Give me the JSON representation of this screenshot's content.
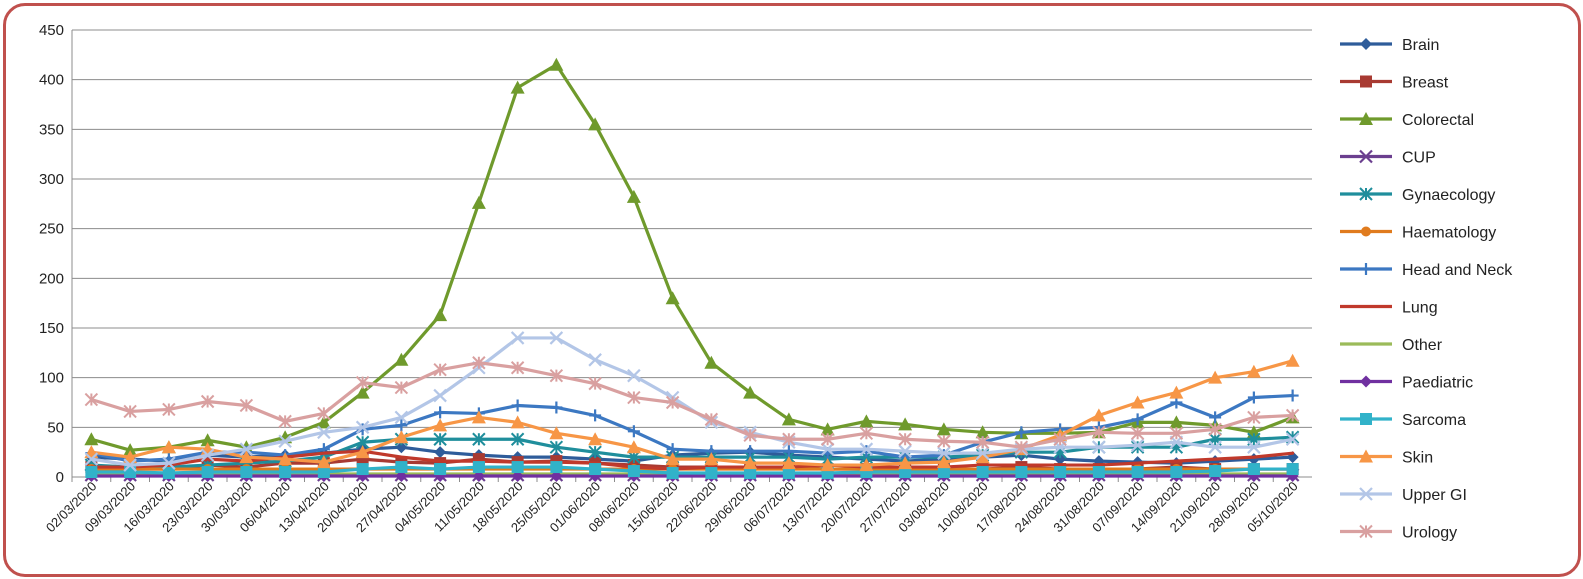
{
  "chart_data": {
    "type": "line",
    "title": "",
    "xlabel": "",
    "ylabel": "",
    "ylim": [
      0,
      450
    ],
    "yticks": [
      0,
      50,
      100,
      150,
      200,
      250,
      300,
      350,
      400,
      450
    ],
    "grid": true,
    "legend_position": "right",
    "categories": [
      "02/03/2020",
      "09/03/2020",
      "16/03/2020",
      "23/03/2020",
      "30/03/2020",
      "06/04/2020",
      "13/04/2020",
      "20/04/2020",
      "27/04/2020",
      "04/05/2020",
      "11/05/2020",
      "18/05/2020",
      "25/05/2020",
      "01/06/2020",
      "08/06/2020",
      "15/06/2020",
      "22/06/2020",
      "29/06/2020",
      "06/07/2020",
      "13/07/2020",
      "20/07/2020",
      "27/07/2020",
      "03/08/2020",
      "10/08/2020",
      "17/08/2020",
      "24/08/2020",
      "31/08/2020",
      "07/09/2020",
      "14/09/2020",
      "21/09/2020",
      "28/09/2020",
      "05/10/2020"
    ],
    "series": [
      {
        "name": "Brain",
        "color": "#2e5c9a",
        "marker": "diamond",
        "values": [
          20,
          18,
          16,
          22,
          20,
          22,
          24,
          28,
          30,
          25,
          22,
          20,
          20,
          18,
          16,
          22,
          24,
          25,
          22,
          20,
          18,
          16,
          18,
          20,
          22,
          18,
          16,
          15,
          14,
          16,
          18,
          20
        ]
      },
      {
        "name": "Breast",
        "color": "#a83a32",
        "marker": "square",
        "values": [
          10,
          8,
          8,
          12,
          10,
          14,
          14,
          18,
          15,
          14,
          18,
          15,
          16,
          14,
          12,
          10,
          10,
          8,
          10,
          8,
          8,
          8,
          8,
          8,
          10,
          8,
          8,
          8,
          10,
          8,
          8,
          8
        ]
      },
      {
        "name": "Colorectal",
        "color": "#6f9a2c",
        "marker": "triangle",
        "values": [
          38,
          27,
          30,
          37,
          30,
          40,
          55,
          85,
          118,
          163,
          276,
          392,
          415,
          355,
          282,
          180,
          115,
          85,
          58,
          48,
          56,
          53,
          48,
          45,
          44,
          44,
          45,
          55,
          55,
          52,
          45,
          60
        ]
      },
      {
        "name": "CUP",
        "color": "#6b3f8f",
        "marker": "x",
        "values": [
          2,
          2,
          2,
          2,
          2,
          2,
          2,
          2,
          2,
          2,
          2,
          2,
          2,
          2,
          2,
          2,
          2,
          2,
          2,
          2,
          2,
          2,
          2,
          2,
          2,
          2,
          2,
          2,
          2,
          2,
          2,
          2
        ]
      },
      {
        "name": "Gynaecology",
        "color": "#1f8e9c",
        "marker": "star",
        "values": [
          12,
          10,
          10,
          12,
          14,
          16,
          20,
          35,
          38,
          38,
          38,
          38,
          30,
          25,
          20,
          20,
          20,
          20,
          20,
          18,
          20,
          20,
          20,
          22,
          25,
          25,
          30,
          30,
          30,
          38,
          38,
          40
        ]
      },
      {
        "name": "Haematology",
        "color": "#e07b1e",
        "marker": "circle",
        "values": [
          8,
          8,
          8,
          8,
          8,
          8,
          8,
          8,
          8,
          8,
          8,
          8,
          8,
          8,
          8,
          8,
          8,
          8,
          8,
          8,
          8,
          8,
          8,
          8,
          8,
          8,
          8,
          8,
          8,
          8,
          8,
          8
        ]
      },
      {
        "name": "Head and Neck",
        "color": "#3c78c2",
        "marker": "plus",
        "values": [
          24,
          16,
          18,
          25,
          25,
          22,
          28,
          48,
          52,
          65,
          64,
          72,
          70,
          62,
          46,
          28,
          26,
          26,
          26,
          24,
          26,
          20,
          22,
          35,
          45,
          48,
          50,
          58,
          75,
          60,
          80,
          82
        ]
      },
      {
        "name": "Lung",
        "color": "#c0392b",
        "marker": "none",
        "values": [
          10,
          10,
          12,
          18,
          16,
          20,
          24,
          26,
          20,
          16,
          16,
          15,
          15,
          14,
          10,
          8,
          10,
          10,
          10,
          12,
          10,
          10,
          10,
          12,
          12,
          12,
          12,
          14,
          16,
          18,
          20,
          24
        ]
      },
      {
        "name": "Other",
        "color": "#9bbb59",
        "marker": "none",
        "values": [
          3,
          3,
          3,
          3,
          3,
          3,
          3,
          3,
          3,
          3,
          3,
          3,
          3,
          3,
          3,
          3,
          3,
          3,
          3,
          3,
          3,
          3,
          3,
          3,
          3,
          3,
          3,
          3,
          3,
          3,
          3,
          3
        ]
      },
      {
        "name": "Paediatric",
        "color": "#7030a0",
        "marker": "diamond",
        "values": [
          1,
          1,
          1,
          1,
          1,
          1,
          1,
          1,
          1,
          1,
          1,
          1,
          1,
          1,
          1,
          1,
          1,
          1,
          1,
          1,
          1,
          1,
          1,
          1,
          1,
          1,
          1,
          1,
          1,
          1,
          1,
          1
        ]
      },
      {
        "name": "Sarcoma",
        "color": "#31b2c9",
        "marker": "square",
        "values": [
          5,
          5,
          4,
          5,
          5,
          5,
          5,
          8,
          10,
          8,
          10,
          10,
          10,
          8,
          6,
          4,
          4,
          4,
          4,
          4,
          5,
          5,
          5,
          5,
          5,
          5,
          5,
          5,
          5,
          6,
          8,
          8
        ]
      },
      {
        "name": "Skin",
        "color": "#f79646",
        "marker": "triangle",
        "values": [
          25,
          20,
          30,
          28,
          20,
          18,
          15,
          25,
          40,
          52,
          60,
          55,
          44,
          38,
          30,
          18,
          18,
          14,
          14,
          12,
          12,
          14,
          15,
          20,
          28,
          42,
          62,
          75,
          85,
          100,
          106,
          117
        ]
      },
      {
        "name": "Upper GI",
        "color": "#b3c6e7",
        "marker": "x",
        "values": [
          18,
          12,
          14,
          22,
          28,
          36,
          45,
          50,
          60,
          82,
          110,
          140,
          140,
          118,
          102,
          80,
          55,
          45,
          35,
          28,
          28,
          26,
          24,
          24,
          28,
          30,
          30,
          32,
          35,
          30,
          30,
          38
        ]
      },
      {
        "name": "Urology",
        "color": "#d9a0a0",
        "marker": "star",
        "values": [
          78,
          66,
          68,
          76,
          72,
          56,
          64,
          95,
          90,
          108,
          115,
          110,
          102,
          94,
          80,
          75,
          58,
          42,
          38,
          38,
          44,
          38,
          36,
          35,
          30,
          38,
          45,
          44,
          44,
          48,
          60,
          62
        ]
      }
    ]
  }
}
